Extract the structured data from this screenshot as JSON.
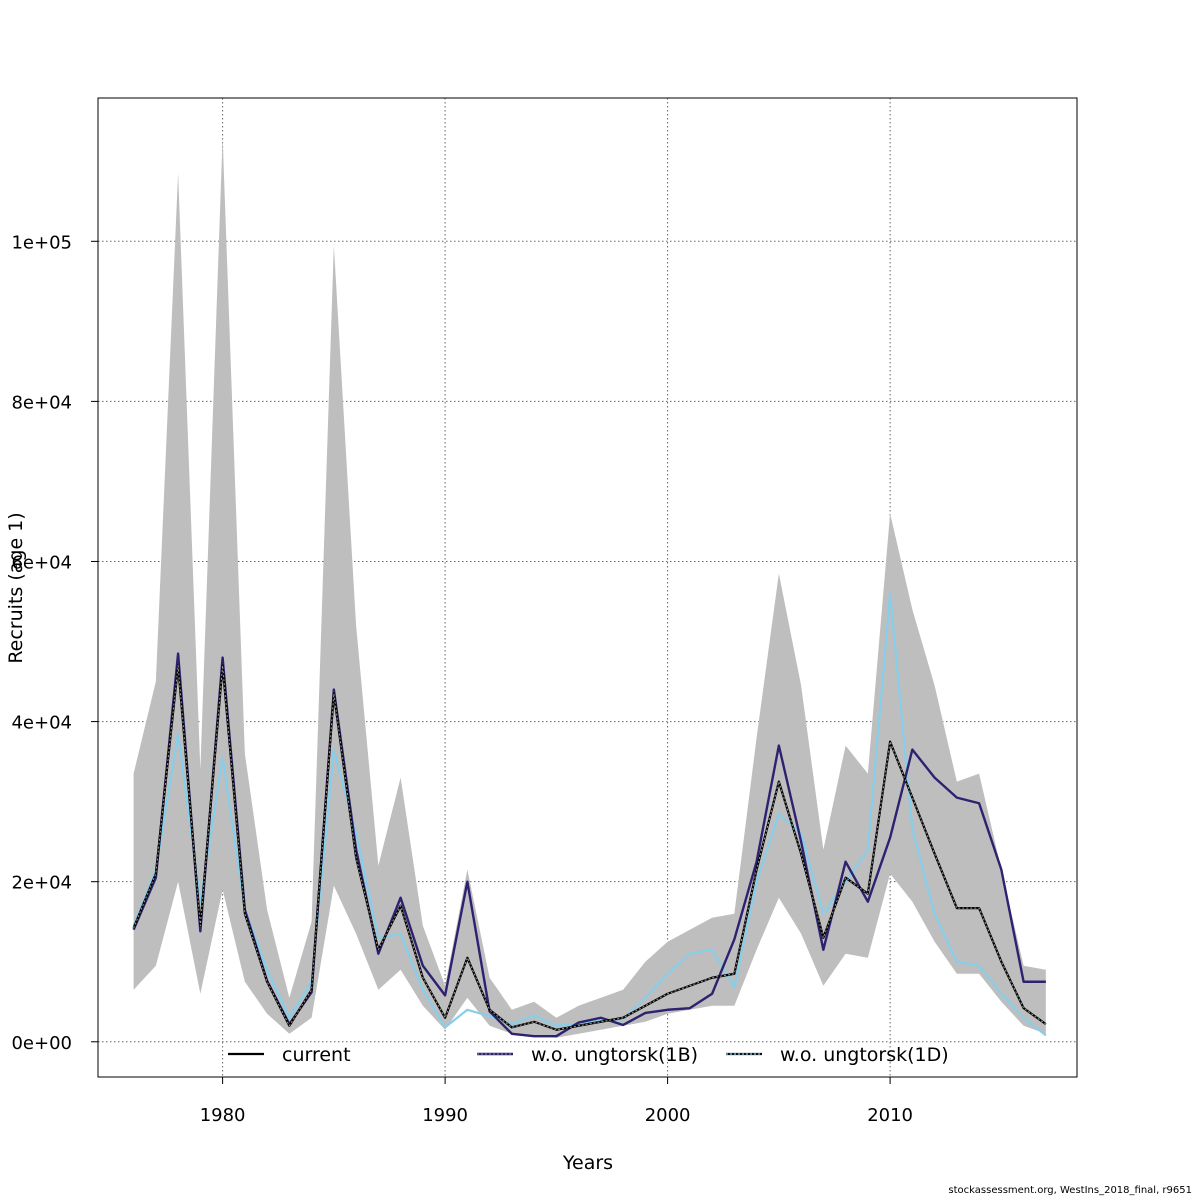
{
  "chart_data": {
    "type": "line",
    "xlabel": "Years",
    "ylabel": "Recruits (age 1)",
    "xlim": [
      1974.4,
      2018.4
    ],
    "ylim": [
      -4400,
      117900
    ],
    "x_ticks": [
      1980,
      1990,
      2000,
      2010
    ],
    "y_ticks": [
      0,
      20000,
      40000,
      60000,
      80000,
      100000
    ],
    "y_tick_labels": [
      "0e+00",
      "2e+04",
      "4e+04",
      "6e+04",
      "8e+04",
      "1e+05"
    ],
    "grid": true,
    "x": [
      1976,
      1977,
      1978,
      1979,
      1980,
      1981,
      1982,
      1983,
      1984,
      1985,
      1986,
      1987,
      1988,
      1989,
      1990,
      1991,
      1992,
      1993,
      1994,
      1995,
      1996,
      1997,
      1998,
      1999,
      2000,
      2001,
      2002,
      2003,
      2004,
      2005,
      2006,
      2007,
      2008,
      2009,
      2010,
      2011,
      2012,
      2013,
      2014,
      2015,
      2016,
      2017
    ],
    "band": {
      "upper": [
        33500,
        45000,
        108500,
        34000,
        113000,
        36000,
        16500,
        5500,
        15000,
        99500,
        52000,
        22000,
        33000,
        14500,
        7000,
        21500,
        8000,
        4000,
        5000,
        3000,
        4500,
        5500,
        6500,
        10000,
        12500,
        14000,
        15500,
        16000,
        38000,
        58500,
        44500,
        24000,
        37000,
        33500,
        66000,
        54000,
        44500,
        32500,
        33500,
        21500,
        9500,
        9000
      ],
      "lower": [
        6500,
        9500,
        20000,
        6000,
        19000,
        7500,
        3500,
        1000,
        3000,
        19500,
        13500,
        6500,
        9000,
        4500,
        1500,
        5500,
        2000,
        1000,
        800,
        500,
        1000,
        1500,
        2000,
        2500,
        3500,
        4000,
        4500,
        4500,
        11500,
        18000,
        13500,
        7000,
        11000,
        10500,
        21000,
        17500,
        12500,
        8500,
        8500,
        5000,
        2000,
        1000
      ]
    },
    "series": [
      {
        "name": "current",
        "color": "#000000",
        "dash": "solid",
        "values": [
          14200,
          21000,
          47000,
          14500,
          47000,
          16000,
          7500,
          2000,
          6500,
          43500,
          23000,
          11500,
          17000,
          8000,
          3000,
          10500,
          4000,
          1800,
          2500,
          1500,
          2000,
          2500,
          3000,
          4500,
          6000,
          7000,
          8000,
          8500,
          21500,
          32500,
          23500,
          13000,
          20500,
          18500,
          37500,
          30500,
          23500,
          16700,
          16700,
          10000,
          4200,
          2200
        ]
      },
      {
        "name": "w.o. ungtorsk(1B)",
        "color": "#2d2270",
        "dash": "dotted-under",
        "values": [
          14000,
          20500,
          48500,
          13800,
          48000,
          16500,
          7600,
          2200,
          6200,
          44000,
          24000,
          11000,
          18000,
          9500,
          5800,
          20000,
          3800,
          1000,
          700,
          700,
          2400,
          3000,
          2100,
          3600,
          4000,
          4200,
          6000,
          12800,
          22500,
          37000,
          25000,
          11500,
          22500,
          17500,
          25500,
          36500,
          33000,
          30500,
          29800,
          21500,
          7500,
          7500
        ]
      },
      {
        "name": "w.o. ungtorsk(1D)",
        "color": "#87ceeb",
        "dash": "solid",
        "values": [
          14500,
          21500,
          38500,
          17500,
          35500,
          16500,
          9000,
          3000,
          7500,
          36500,
          26000,
          13000,
          13500,
          6500,
          1800,
          4000,
          3200,
          2200,
          3300,
          2000,
          2200,
          2700,
          2800,
          5500,
          8500,
          11000,
          11500,
          6800,
          20000,
          28500,
          26000,
          16000,
          20000,
          24000,
          56000,
          26500,
          16000,
          10000,
          9500,
          6000,
          3000,
          800
        ]
      }
    ],
    "legend": {
      "placement": "bottom",
      "entries": [
        "current",
        "w.o. ungtorsk(1B)",
        "w.o. ungtorsk(1D)"
      ]
    }
  },
  "footer": "stockassessment.org, WestIns_2018_final, r9651"
}
